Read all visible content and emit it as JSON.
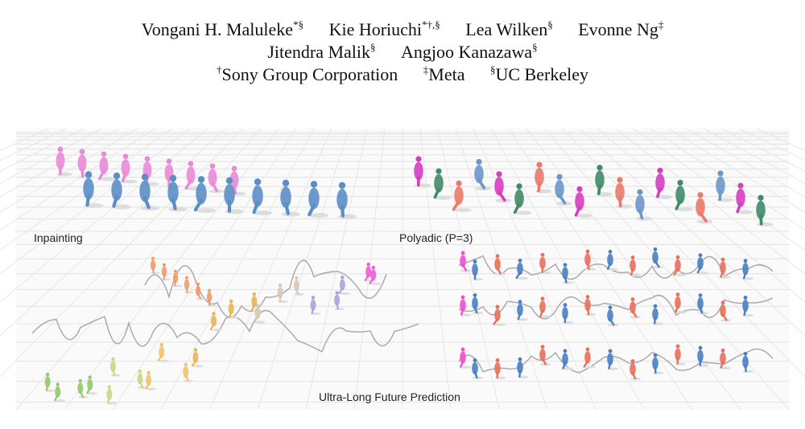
{
  "authors": [
    {
      "name": "Vongani H. Maluleke",
      "marks": "*§"
    },
    {
      "name": "Kie Horiuchi",
      "marks": "*†,§"
    },
    {
      "name": "Lea Wilken",
      "marks": "§"
    },
    {
      "name": "Evonne Ng",
      "marks": "‡"
    },
    {
      "name": "Jitendra Malik",
      "marks": "§"
    },
    {
      "name": "Angjoo Kanazawa",
      "marks": "§"
    }
  ],
  "affiliations": [
    {
      "mark": "†",
      "name": "Sony Group Corporation"
    },
    {
      "mark": "‡",
      "name": "Meta"
    },
    {
      "mark": "§",
      "name": "UC Berkeley"
    }
  ],
  "figure": {
    "labels": [
      "Inpainting",
      "Polyadic (P=3)",
      "Ultra-Long Future Prediction"
    ]
  }
}
